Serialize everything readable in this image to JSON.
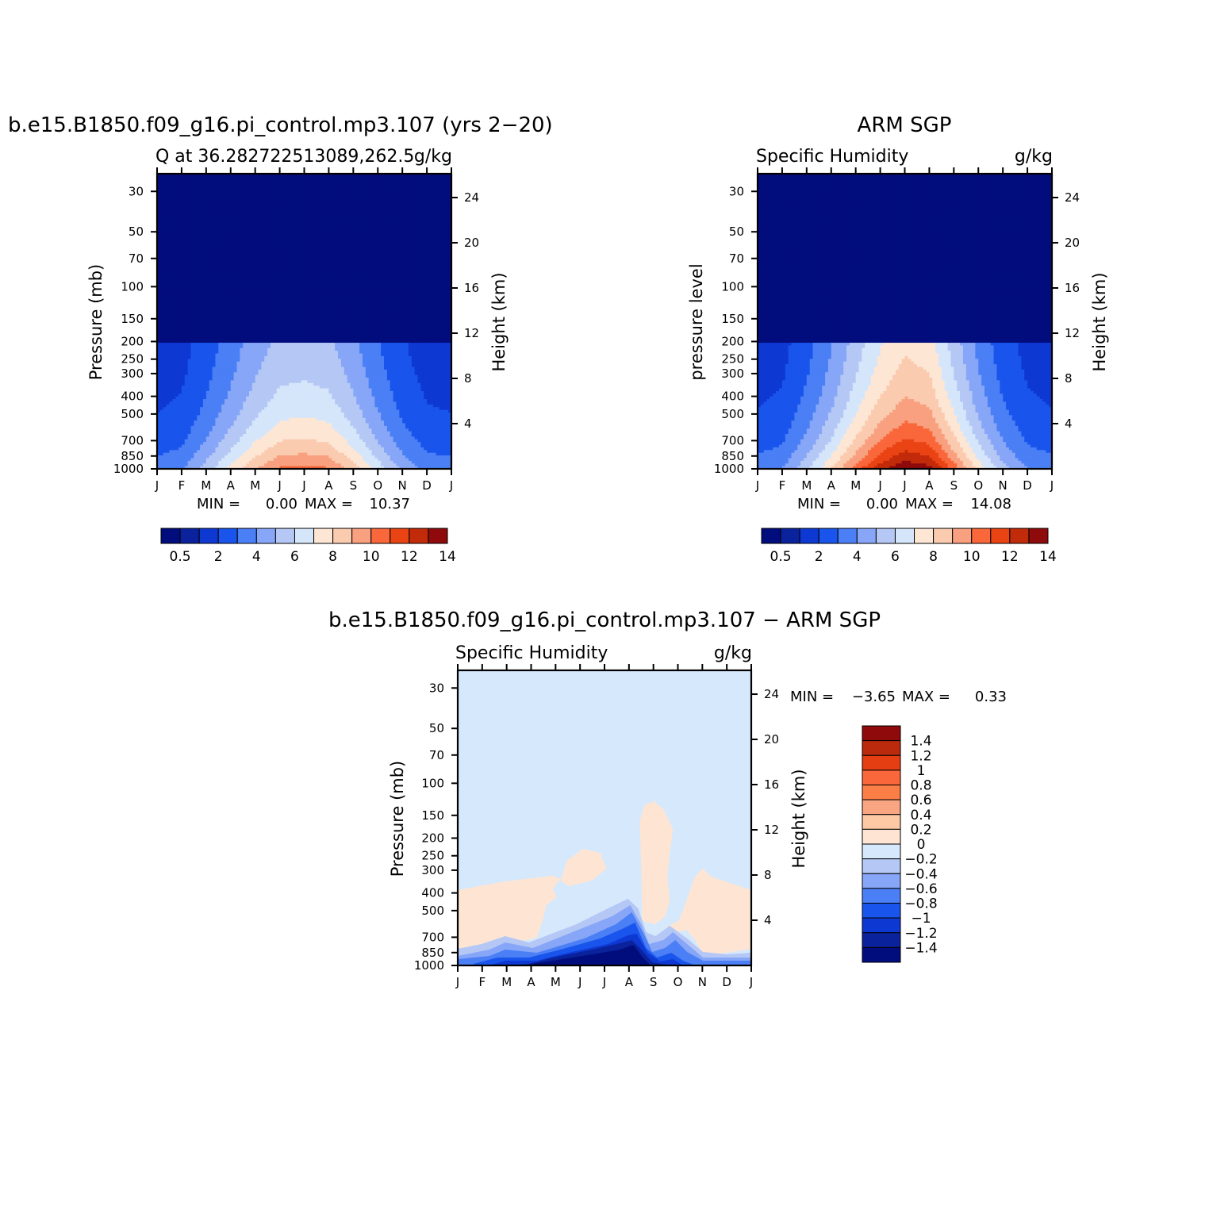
{
  "chart_data": [
    {
      "type": "heatmap",
      "id": "model",
      "title": "b.e15.B1850.f09_g16.pi_control.mp3.107 (yrs 2−20)",
      "subtitle_left": "Q at 36.282722513089,262.5",
      "subtitle_right": "g/kg",
      "ylabel": "Pressure (mb)",
      "ylabel_right": "Height (km)",
      "yscale": "log",
      "ylim": [
        1000,
        24
      ],
      "x_ticks": [
        "J",
        "F",
        "M",
        "A",
        "M",
        "J",
        "J",
        "A",
        "S",
        "O",
        "N",
        "D",
        "J"
      ],
      "y_ticks": [
        30,
        50,
        70,
        100,
        150,
        200,
        250,
        300,
        400,
        500,
        700,
        850,
        1000
      ],
      "height_ticks": [
        24,
        20,
        16,
        12,
        8,
        4
      ],
      "stats": {
        "min_label": "MIN =",
        "min": "0.00",
        "max_label": "MAX =",
        "max": "10.37"
      },
      "colorbar_ticks": [
        "0.5",
        "2",
        "4",
        "6",
        "8",
        "10",
        "12",
        "14"
      ],
      "surface_peak_g_per_kg": [
        3.5,
        3.9,
        5.5,
        7.3,
        9.0,
        10.2,
        10.4,
        10.1,
        8.6,
        6.6,
        4.8,
        3.7,
        3.5
      ]
    },
    {
      "type": "heatmap",
      "id": "obs",
      "title": "ARM SGP",
      "subtitle_left": "Specific Humidity",
      "subtitle_right": "g/kg",
      "ylabel": "pressure level",
      "ylabel_right": "Height (km)",
      "yscale": "log",
      "ylim": [
        1000,
        24
      ],
      "x_ticks": [
        "J",
        "F",
        "M",
        "A",
        "M",
        "J",
        "J",
        "A",
        "S",
        "O",
        "N",
        "D",
        "J"
      ],
      "y_ticks": [
        30,
        50,
        70,
        100,
        150,
        200,
        250,
        300,
        400,
        500,
        700,
        850,
        1000
      ],
      "height_ticks": [
        24,
        20,
        16,
        12,
        8,
        4
      ],
      "stats": {
        "min_label": "MIN =",
        "min": "0.00",
        "max_label": "MAX =",
        "max": "14.08"
      },
      "colorbar_ticks": [
        "0.5",
        "2",
        "4",
        "6",
        "8",
        "10",
        "12",
        "14"
      ],
      "surface_peak_g_per_kg": [
        3.6,
        4.0,
        5.8,
        8.0,
        10.5,
        12.6,
        13.9,
        13.4,
        10.6,
        7.7,
        5.4,
        4.0,
        3.6
      ]
    },
    {
      "type": "heatmap",
      "id": "diff",
      "title": "b.e15.B1850.f09_g16.pi_control.mp3.107 − ARM SGP",
      "subtitle_left": "Specific Humidity",
      "subtitle_right": "g/kg",
      "ylabel": "Pressure (mb)",
      "ylabel_right": "Height (km)",
      "yscale": "log",
      "ylim": [
        1000,
        24
      ],
      "x_ticks": [
        "J",
        "F",
        "M",
        "A",
        "M",
        "J",
        "J",
        "A",
        "S",
        "O",
        "N",
        "D",
        "J"
      ],
      "y_ticks": [
        30,
        50,
        70,
        100,
        150,
        200,
        250,
        300,
        400,
        500,
        700,
        850,
        1000
      ],
      "height_ticks": [
        24,
        20,
        16,
        12,
        8,
        4
      ],
      "stats": {
        "min_label": "MIN =",
        "min": "−3.65",
        "max_label": "MAX =",
        "max": "0.33"
      },
      "colorbar_ticks": [
        "1.4",
        "1.2",
        "1",
        "0.8",
        "0.6",
        "0.4",
        "0.2",
        "0",
        "−0.2",
        "−0.4",
        "−0.6",
        "−0.8",
        "−1",
        "−1.2",
        "−1.4"
      ]
    }
  ],
  "colors": {
    "seq": [
      "#020d7d",
      "#0a239c",
      "#0e38d2",
      "#1955ec",
      "#4b7ff5",
      "#87a6f7",
      "#b5c8f5",
      "#d5e6fb",
      "#fde6d4",
      "#fbcbb0",
      "#f8a07f",
      "#f9673a",
      "#ea4314",
      "#c22b0a",
      "#8f0b0b"
    ],
    "div": [
      "#8f0b0b",
      "#bb2a0c",
      "#e43e12",
      "#f9673a",
      "#fb7e47",
      "#f9a582",
      "#fdc9a4",
      "#fee5d3",
      "#d6e8fc",
      "#b5c8f5",
      "#87a6f7",
      "#4b7ff5",
      "#1955ec",
      "#0e38d2",
      "#0a239c",
      "#020d7d"
    ]
  }
}
